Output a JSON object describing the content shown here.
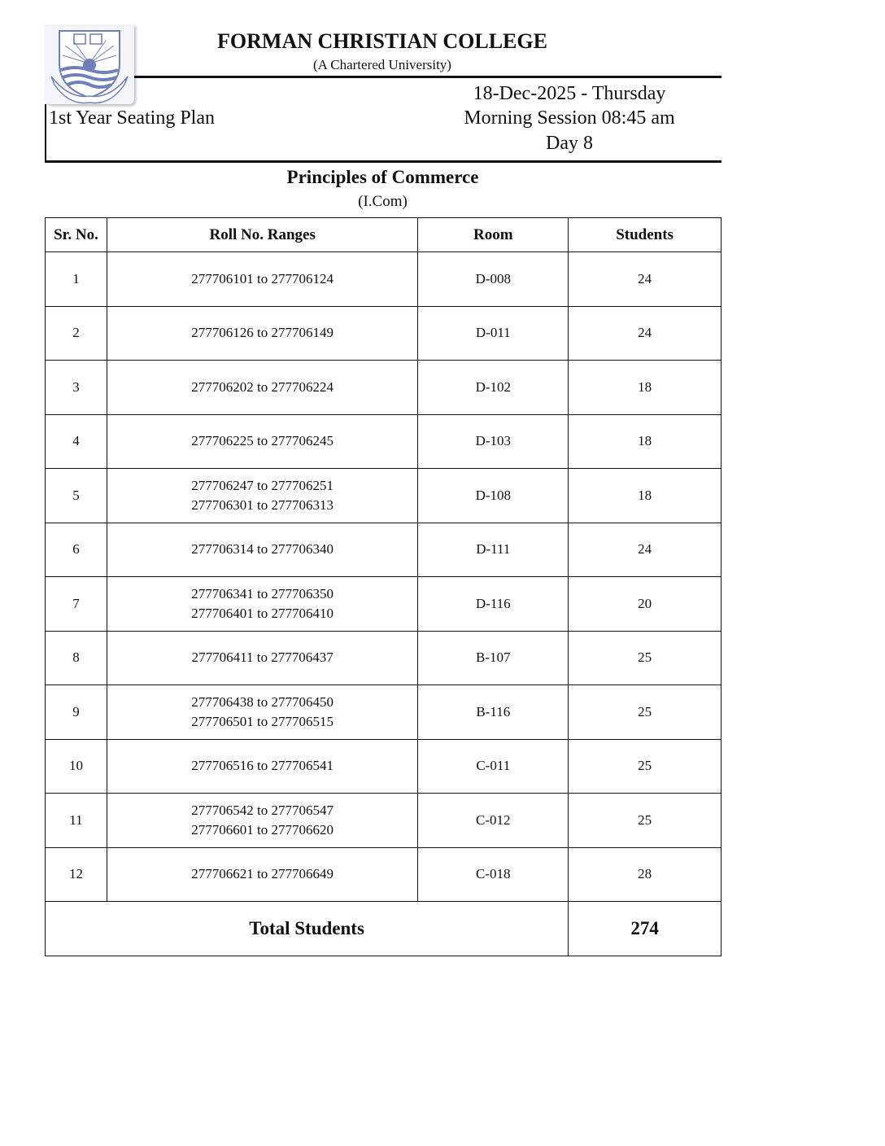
{
  "header": {
    "institution": "FORMAN CHRISTIAN COLLEGE",
    "subtitle": "(A Chartered University)",
    "logo_motto": "BY LOVE SERVE ONE ANOTHER",
    "plan_title": "1st Year Seating Plan",
    "date": "18-Dec-2025 - Thursday",
    "session": "Morning Session 08:45 am",
    "day": "Day 8"
  },
  "exam": {
    "subject": "Principles of Commerce",
    "program": "(I.Com)"
  },
  "table": {
    "columns": [
      "Sr. No.",
      "Roll No. Ranges",
      "Room",
      "Students"
    ],
    "rows": [
      {
        "sr": "1",
        "ranges": [
          "277706101 to 277706124"
        ],
        "room": "D-008",
        "students": "24"
      },
      {
        "sr": "2",
        "ranges": [
          "277706126 to 277706149"
        ],
        "room": "D-011",
        "students": "24"
      },
      {
        "sr": "3",
        "ranges": [
          "277706202 to 277706224"
        ],
        "room": "D-102",
        "students": "18"
      },
      {
        "sr": "4",
        "ranges": [
          "277706225 to 277706245"
        ],
        "room": "D-103",
        "students": "18"
      },
      {
        "sr": "5",
        "ranges": [
          "277706247 to 277706251",
          "277706301 to 277706313"
        ],
        "room": "D-108",
        "students": "18"
      },
      {
        "sr": "6",
        "ranges": [
          "277706314 to 277706340"
        ],
        "room": "D-111",
        "students": "24"
      },
      {
        "sr": "7",
        "ranges": [
          "277706341 to 277706350",
          "277706401 to 277706410"
        ],
        "room": "D-116",
        "students": "20"
      },
      {
        "sr": "8",
        "ranges": [
          "277706411 to 277706437"
        ],
        "room": "B-107",
        "students": "25"
      },
      {
        "sr": "9",
        "ranges": [
          "277706438 to 277706450",
          "277706501 to 277706515"
        ],
        "room": "B-116",
        "students": "25"
      },
      {
        "sr": "10",
        "ranges": [
          "277706516 to 277706541"
        ],
        "room": "C-011",
        "students": "25"
      },
      {
        "sr": "11",
        "ranges": [
          "277706542 to 277706547",
          "277706601 to 277706620"
        ],
        "room": "C-012",
        "students": "25"
      },
      {
        "sr": "12",
        "ranges": [
          "277706621 to 277706649"
        ],
        "room": "C-018",
        "students": "28"
      }
    ],
    "total_label": "Total Students",
    "total_value": "274"
  },
  "colors": {
    "logo_blue": "#6f7fb8"
  }
}
